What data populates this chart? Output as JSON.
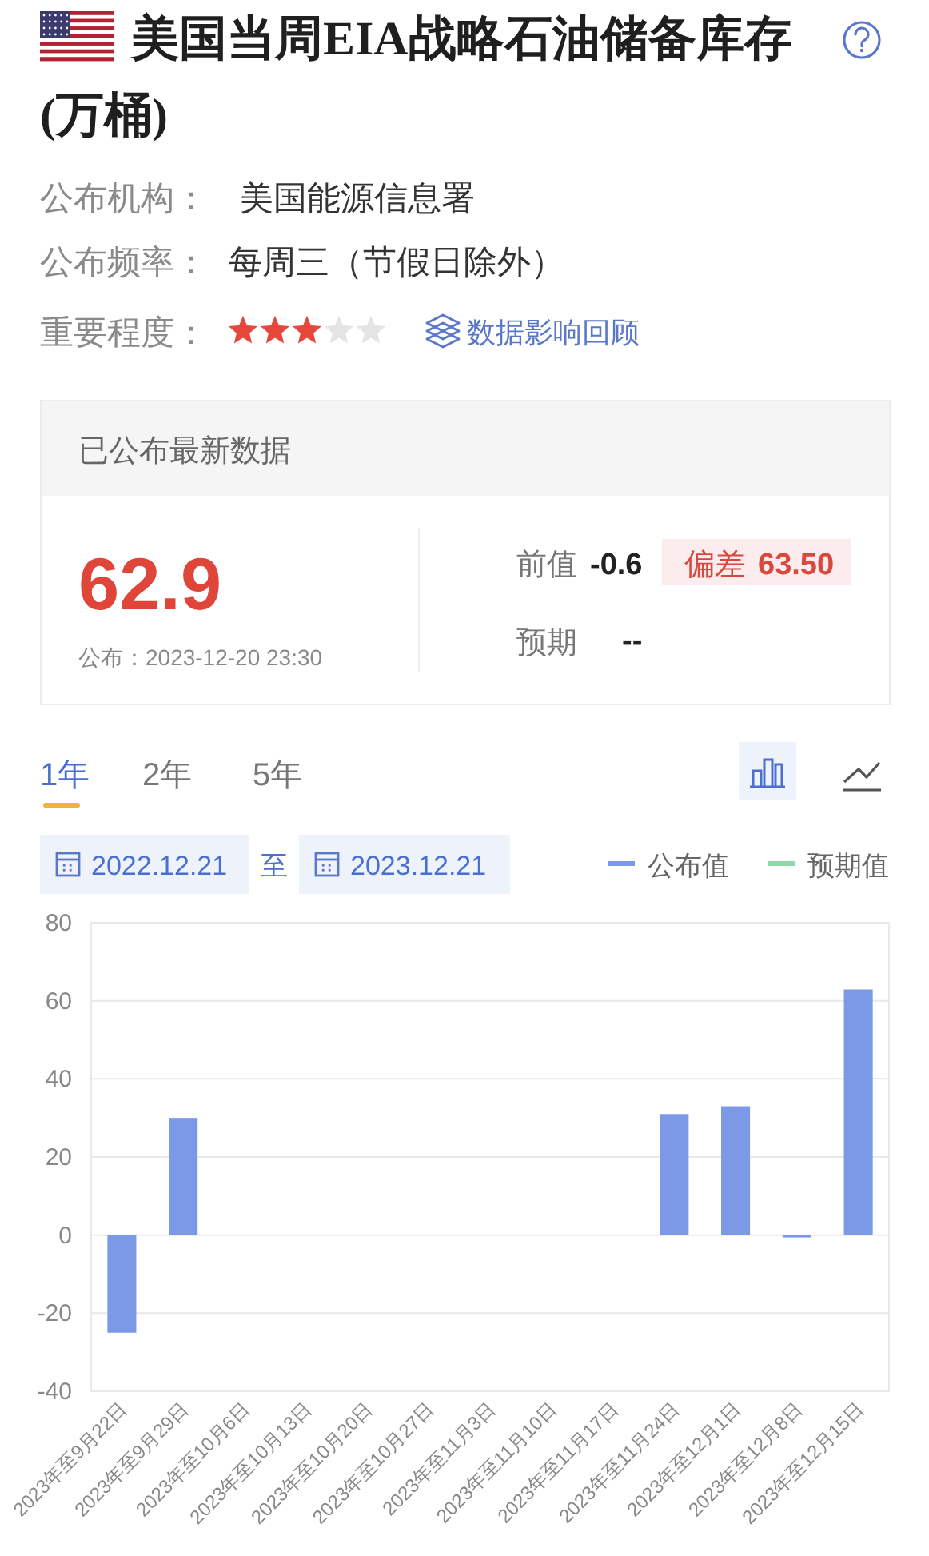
{
  "chart_data": [
    {
      "type": "other",
      "title": "美国当周EIA战略石油储备库存(万桶)",
      "annotations": [
        "公布机构：",
        "美国能源信息署",
        "公布频率：",
        "每周三（节假日除外）",
        "重要程度：",
        "数据影响回顾",
        "已公布最新数据",
        "62.9",
        "公布：2023-12-20 23:30",
        "前值",
        "-0.6",
        "偏差",
        "63.50",
        "预期",
        "--"
      ]
    },
    {
      "type": "bar",
      "categories": [
        "2023年至9月22日",
        "2023年至9月29日",
        "2023年至10月6日",
        "2023年至10月13日",
        "2023年至10月20日",
        "2023年至10月27日",
        "2023年至11月3日",
        "2023年至11月10日",
        "2023年至11月17日",
        "2023年至11月24日",
        "2023年至12月1日",
        "2023年至12月8日",
        "2023年至12月15日"
      ],
      "series": [
        {
          "name": "公布值",
          "color": "#7b99e6",
          "values": [
            -25,
            30,
            null,
            null,
            null,
            null,
            null,
            null,
            null,
            31,
            33,
            -0.6,
            62.9
          ]
        },
        {
          "name": "预期值",
          "type": "line",
          "color": "#8fdaa6",
          "values": [
            null,
            null,
            null,
            null,
            null,
            null,
            null,
            null,
            null,
            null,
            null,
            null,
            null
          ]
        }
      ],
      "ylim": [
        -40,
        80
      ],
      "yticks": [
        -40,
        -20,
        0,
        20,
        40,
        60,
        80
      ],
      "grid": "y",
      "legend": "top right",
      "annotations": [
        "1年",
        "2年",
        "5年",
        "2022.12.21",
        "至",
        "2023.12.21"
      ]
    }
  ]
}
